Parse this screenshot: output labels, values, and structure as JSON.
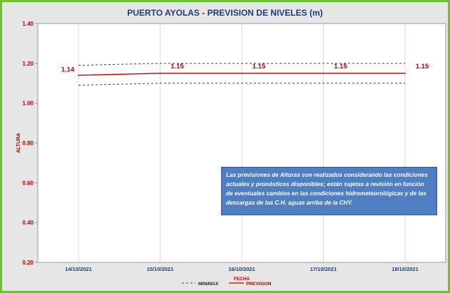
{
  "chart_data": {
    "type": "line",
    "title": "PUERTO AYOLAS - PREVISION DE NIVELES (m)",
    "xlabel": "FECHA",
    "ylabel": "ALTURA",
    "ylim": [
      0.2,
      1.4
    ],
    "yticks": [
      "0.20",
      "0.40",
      "0.60",
      "0.80",
      "1.00",
      "1.20",
      "1.40"
    ],
    "categories": [
      "14/10/2021",
      "15/10/2021",
      "16/10/2021",
      "17/10/2021",
      "18/10/2021"
    ],
    "series": [
      {
        "name": "PREVISION",
        "values": [
          1.14,
          1.15,
          1.15,
          1.15,
          1.15
        ],
        "labels": [
          "1.14",
          "1.15",
          "1.15",
          "1.15",
          "1.15"
        ],
        "color": "#c00000"
      },
      {
        "name": "MIN/MAX",
        "max": [
          1.19,
          1.2,
          1.2,
          1.2,
          1.2
        ],
        "min": [
          1.09,
          1.1,
          1.1,
          1.1,
          1.1
        ],
        "color": "#404040"
      }
    ],
    "legend": {
      "position": "bottom",
      "min_max_label": "MIN/MAX",
      "prevision_label": "PREVISION"
    },
    "grid": "vertical",
    "note": "Las previsiones de Alturas son realizados considerando las condiciones actuales y pronósticos disponibles;  están sujetas a revisión en función de eventuales cambios en las condiciones hidrometeorológicas y de las descargas de las C.H. aguas arriba de la CHY."
  }
}
